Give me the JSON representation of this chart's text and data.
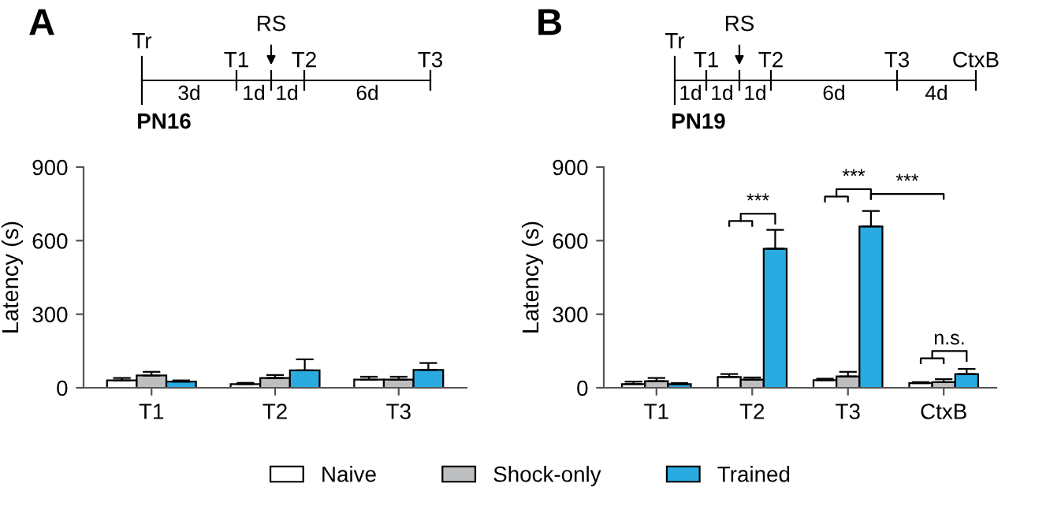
{
  "chart_data": [
    {
      "type": "bar",
      "title": "A",
      "ylabel": "Latency (s)",
      "categories": [
        "T1",
        "T2",
        "T3"
      ],
      "ylim": [
        0,
        900
      ],
      "yticks": [
        0,
        300,
        600,
        900
      ],
      "legend": "bottom",
      "grid": false,
      "series": [
        {
          "name": "Naive",
          "color": "#ffffff",
          "values": [
            30,
            15,
            33
          ],
          "errors": [
            10,
            5,
            12
          ]
        },
        {
          "name": "Shock-only",
          "color": "#bdbec0",
          "values": [
            50,
            40,
            33
          ],
          "errors": [
            15,
            12,
            12
          ]
        },
        {
          "name": "Trained",
          "color": "#29abe2",
          "values": [
            25,
            71,
            73
          ],
          "errors": [
            5,
            45,
            28
          ]
        }
      ],
      "annotations": [
        "Tr",
        "T1",
        "RS",
        "T2",
        "T3",
        "3d",
        "1d",
        "1d",
        "6d",
        "PN16"
      ]
    },
    {
      "type": "bar",
      "title": "B",
      "ylabel": "Latency (s)",
      "categories": [
        "T1",
        "T2",
        "T3",
        "CtxB"
      ],
      "ylim": [
        0,
        900
      ],
      "yticks": [
        0,
        300,
        600,
        900
      ],
      "grid": false,
      "series": [
        {
          "color": "#ffffff",
          "values": [
            15,
            44,
            31,
            19
          ],
          "errors": [
            10,
            12,
            6,
            4
          ]
        },
        {
          "color": "#bdbec0",
          "values": [
            27,
            33,
            46,
            23
          ],
          "errors": [
            13,
            9,
            19,
            12
          ]
        },
        {
          "color": "#29abe2",
          "values": [
            15,
            567,
            658,
            56
          ],
          "errors": [
            4,
            77,
            63,
            21
          ]
        }
      ],
      "annotations": [
        "Tr",
        "T1",
        "RS",
        "T2",
        "T3",
        "CtxB",
        "1d",
        "1d",
        "1d",
        "6d",
        "4d",
        "PN19",
        "***",
        "***",
        "***",
        "n.s."
      ]
    }
  ]
}
